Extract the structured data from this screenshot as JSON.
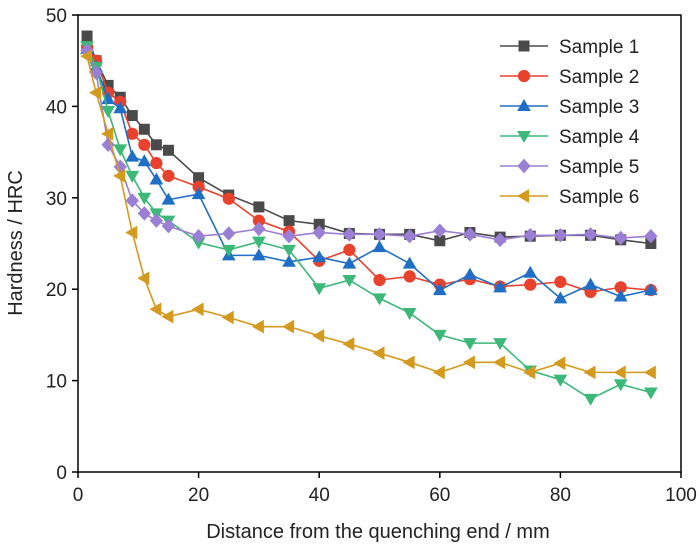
{
  "chart_data": {
    "type": "line",
    "title": "",
    "xlabel": "Distance from the quenching end / mm",
    "ylabel": "Hardness / HRC",
    "xlim": [
      0,
      100
    ],
    "ylim": [
      0,
      50
    ],
    "xticks": [
      "0",
      "20",
      "40",
      "60",
      "80",
      "100"
    ],
    "yticks": [
      "0",
      "10",
      "20",
      "30",
      "40",
      "50"
    ],
    "grid": false,
    "legend_position": "top-right",
    "series": [
      {
        "name": "Sample 1",
        "color": "#4a4a4a",
        "marker": "square",
        "points": [
          [
            1.5,
            47.7
          ],
          [
            3,
            45
          ],
          [
            5,
            42.3
          ],
          [
            7,
            41
          ],
          [
            9,
            39
          ],
          [
            11,
            37.5
          ],
          [
            13,
            35.8
          ],
          [
            15,
            35.2
          ],
          [
            20,
            32.2
          ],
          [
            25,
            30.3
          ],
          [
            30,
            29
          ],
          [
            35,
            27.5
          ],
          [
            40,
            27.1
          ],
          [
            45,
            26.1
          ],
          [
            50,
            26
          ],
          [
            55,
            26
          ],
          [
            60,
            25.3
          ],
          [
            65,
            26.2
          ],
          [
            70,
            25.7
          ],
          [
            75,
            25.8
          ],
          [
            80,
            25.9
          ],
          [
            85,
            25.9
          ],
          [
            90,
            25.4
          ],
          [
            95,
            25
          ]
        ]
      },
      {
        "name": "Sample 2",
        "color": "#e8412c",
        "marker": "circle",
        "points": [
          [
            1.5,
            46.5
          ],
          [
            3,
            45
          ],
          [
            5,
            41.5
          ],
          [
            7,
            40.5
          ],
          [
            9,
            37
          ],
          [
            11,
            35.8
          ],
          [
            13,
            33.8
          ],
          [
            15,
            32.4
          ],
          [
            20,
            31.2
          ],
          [
            25,
            29.9
          ],
          [
            30,
            27.5
          ],
          [
            35,
            26.3
          ],
          [
            40,
            23.1
          ],
          [
            45,
            24.3
          ],
          [
            50,
            21
          ],
          [
            55,
            21.4
          ],
          [
            60,
            20.5
          ],
          [
            65,
            21.1
          ],
          [
            70,
            20.3
          ],
          [
            75,
            20.5
          ],
          [
            80,
            20.8
          ],
          [
            85,
            19.7
          ],
          [
            90,
            20.2
          ],
          [
            95,
            19.9
          ]
        ]
      },
      {
        "name": "Sample 3",
        "color": "#1f6fc6",
        "marker": "triangle-up",
        "points": [
          [
            1.5,
            46.3
          ],
          [
            3,
            44.3
          ],
          [
            5,
            40.8
          ],
          [
            7,
            39.8
          ],
          [
            9,
            34.5
          ],
          [
            11,
            34
          ],
          [
            13,
            32
          ],
          [
            15,
            29.8
          ],
          [
            20,
            30.4
          ],
          [
            25,
            23.7
          ],
          [
            30,
            23.7
          ],
          [
            35,
            23
          ],
          [
            40,
            23.5
          ],
          [
            45,
            22.8
          ],
          [
            50,
            24.6
          ],
          [
            55,
            22.8
          ],
          [
            60,
            19.9
          ],
          [
            65,
            21.6
          ],
          [
            70,
            20.2
          ],
          [
            75,
            21.8
          ],
          [
            80,
            19
          ],
          [
            85,
            20.5
          ],
          [
            90,
            19.2
          ],
          [
            95,
            19.9
          ]
        ]
      },
      {
        "name": "Sample 4",
        "color": "#3cb878",
        "marker": "triangle-down",
        "points": [
          [
            1.5,
            46.6
          ],
          [
            3,
            44.3
          ],
          [
            5,
            39.5
          ],
          [
            7,
            35.3
          ],
          [
            9,
            32.4
          ],
          [
            11,
            30
          ],
          [
            13,
            28.3
          ],
          [
            15,
            27.5
          ],
          [
            20,
            25.1
          ],
          [
            25,
            24.3
          ],
          [
            30,
            25.2
          ],
          [
            35,
            24.3
          ],
          [
            40,
            20.1
          ],
          [
            45,
            21
          ],
          [
            50,
            19
          ],
          [
            55,
            17.4
          ],
          [
            60,
            15
          ],
          [
            65,
            14.1
          ],
          [
            70,
            14.1
          ],
          [
            75,
            11.1
          ],
          [
            80,
            10.1
          ],
          [
            85,
            8
          ],
          [
            90,
            9.6
          ],
          [
            95,
            8.7
          ]
        ]
      },
      {
        "name": "Sample 5",
        "color": "#9b7fd4",
        "marker": "diamond",
        "points": [
          [
            1.5,
            46.1
          ],
          [
            3,
            43.7
          ],
          [
            5,
            35.8
          ],
          [
            7,
            33.4
          ],
          [
            9,
            29.7
          ],
          [
            11,
            28.3
          ],
          [
            13,
            27.5
          ],
          [
            15,
            26.9
          ],
          [
            20,
            25.8
          ],
          [
            25,
            26.1
          ],
          [
            30,
            26.6
          ],
          [
            35,
            25.8
          ],
          [
            40,
            26.2
          ],
          [
            45,
            26
          ],
          [
            50,
            26
          ],
          [
            55,
            25.8
          ],
          [
            60,
            26.4
          ],
          [
            65,
            26
          ],
          [
            70,
            25.4
          ],
          [
            75,
            25.9
          ],
          [
            80,
            25.9
          ],
          [
            85,
            26
          ],
          [
            90,
            25.6
          ],
          [
            95,
            25.8
          ]
        ]
      },
      {
        "name": "Sample 6",
        "color": "#d49a1f",
        "marker": "triangle-left",
        "points": [
          [
            1.5,
            45.5
          ],
          [
            3,
            41.5
          ],
          [
            5,
            37
          ],
          [
            7,
            32.4
          ],
          [
            9,
            26.2
          ],
          [
            11,
            21.2
          ],
          [
            13,
            17.8
          ],
          [
            15,
            17
          ],
          [
            20,
            17.8
          ],
          [
            25,
            16.9
          ],
          [
            30,
            15.9
          ],
          [
            35,
            15.9
          ],
          [
            40,
            14.9
          ],
          [
            45,
            14
          ],
          [
            50,
            13
          ],
          [
            55,
            12
          ],
          [
            60,
            10.9
          ],
          [
            65,
            12
          ],
          [
            70,
            12
          ],
          [
            75,
            10.9
          ],
          [
            80,
            11.9
          ],
          [
            85,
            10.9
          ],
          [
            90,
            10.9
          ],
          [
            95,
            10.9
          ]
        ]
      }
    ]
  }
}
